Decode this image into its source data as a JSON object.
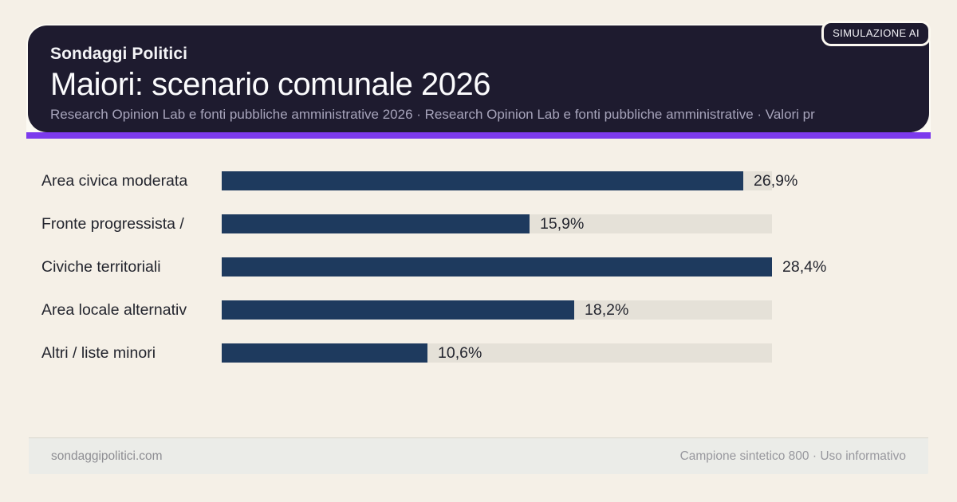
{
  "header": {
    "kicker": "Sondaggi Politici",
    "title": "Maiori: scenario comunale 2026",
    "subtitle": "Research Opinion Lab e fonti pubbliche amministrative 2026 · Research Opinion Lab e fonti pubbliche amministrative · Valori pr",
    "badge": "SIMULAZIONE AI"
  },
  "chart_data": {
    "type": "bar",
    "orientation": "horizontal",
    "title": "Maiori: scenario comunale 2026",
    "categories": [
      "Area civica moderata",
      "Fronte progressista /",
      "Civiche territoriali",
      "Area locale alternativ",
      "Altri / liste minori"
    ],
    "values": [
      26.9,
      15.9,
      28.4,
      18.2,
      10.6
    ],
    "display_values": [
      "26,9%",
      "15,9%",
      "28,4%",
      "18,2%",
      "10,6%"
    ],
    "scale_max": 28.4,
    "xlim": [
      0,
      28.4
    ],
    "value_suffix": "%",
    "grid": false,
    "legend": false,
    "bar_color": "#1e3a5e",
    "track_color": "#e5e1d8"
  },
  "footer": {
    "site": "sondaggipolitici.com",
    "note": "Campione sintetico 800 · Uso informativo"
  },
  "colors": {
    "background": "#f5f0e7",
    "header_bg": "#1e1b2f",
    "accent": "#7c3aed",
    "card_outline": "#fcfaf3",
    "text_dark": "#23252e"
  }
}
